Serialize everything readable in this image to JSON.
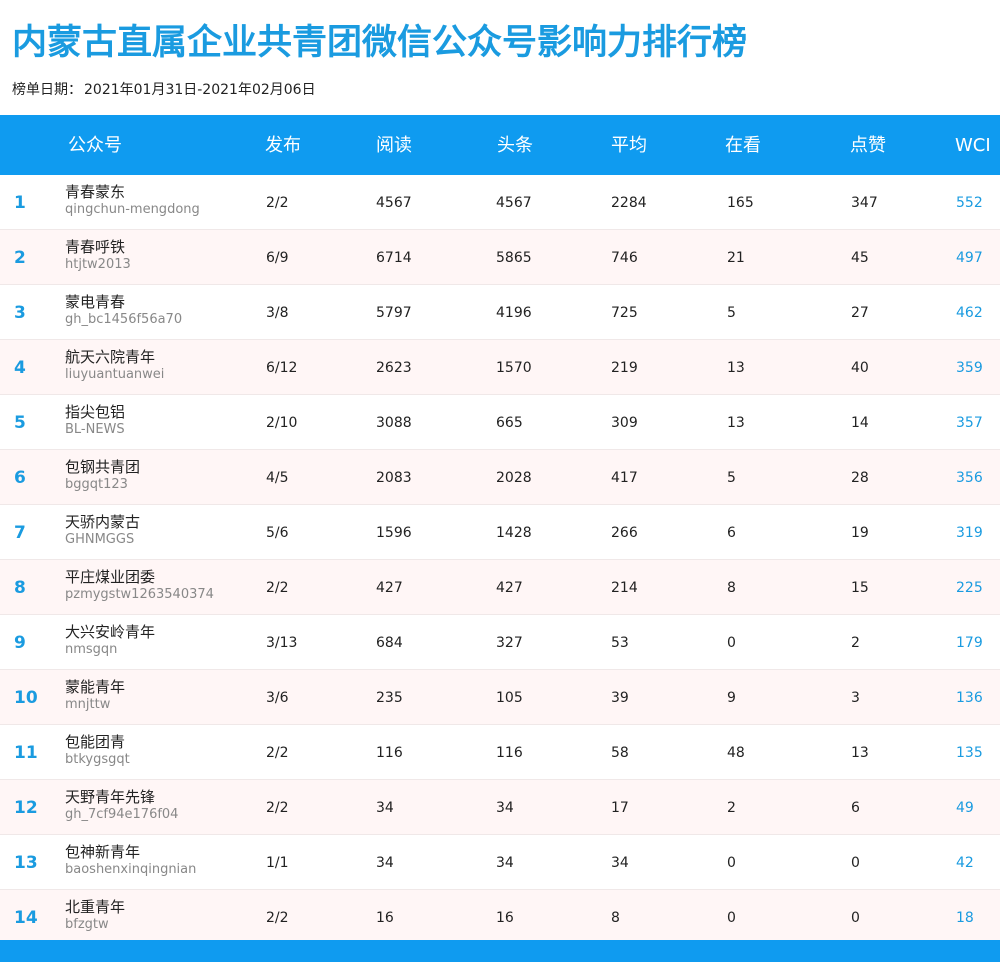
{
  "title": "内蒙古直属企业共青团微信公众号影响力排行榜",
  "date_label": "榜单日期：",
  "date_range": "2021年01月31日-2021年02月06日",
  "columns": [
    "公众号",
    "发布",
    "阅读",
    "头条",
    "平均",
    "在看",
    "点赞",
    "WCI"
  ],
  "rows": [
    {
      "rank": "1",
      "name": "青春蒙东",
      "id": "qingchun-mengdong",
      "publish": "2/2",
      "read": "4567",
      "headline": "4567",
      "avg": "2284",
      "watching": "165",
      "likes": "347",
      "wci": "552"
    },
    {
      "rank": "2",
      "name": "青春呼铁",
      "id": "htjtw2013",
      "publish": "6/9",
      "read": "6714",
      "headline": "5865",
      "avg": "746",
      "watching": "21",
      "likes": "45",
      "wci": "497"
    },
    {
      "rank": "3",
      "name": "蒙电青春",
      "id": "gh_bc1456f56a70",
      "publish": "3/8",
      "read": "5797",
      "headline": "4196",
      "avg": "725",
      "watching": "5",
      "likes": "27",
      "wci": "462"
    },
    {
      "rank": "4",
      "name": "航天六院青年",
      "id": "liuyuantuanwei",
      "publish": "6/12",
      "read": "2623",
      "headline": "1570",
      "avg": "219",
      "watching": "13",
      "likes": "40",
      "wci": "359"
    },
    {
      "rank": "5",
      "name": "指尖包铝",
      "id": "BL-NEWS",
      "publish": "2/10",
      "read": "3088",
      "headline": "665",
      "avg": "309",
      "watching": "13",
      "likes": "14",
      "wci": "357"
    },
    {
      "rank": "6",
      "name": "包钢共青团",
      "id": "bggqt123",
      "publish": "4/5",
      "read": "2083",
      "headline": "2028",
      "avg": "417",
      "watching": "5",
      "likes": "28",
      "wci": "356"
    },
    {
      "rank": "7",
      "name": "天骄内蒙古",
      "id": "GHNMGGS",
      "publish": "5/6",
      "read": "1596",
      "headline": "1428",
      "avg": "266",
      "watching": "6",
      "likes": "19",
      "wci": "319"
    },
    {
      "rank": "8",
      "name": "平庄煤业团委",
      "id": "pzmygstw1263540374",
      "publish": "2/2",
      "read": "427",
      "headline": "427",
      "avg": "214",
      "watching": "8",
      "likes": "15",
      "wci": "225"
    },
    {
      "rank": "9",
      "name": "大兴安岭青年",
      "id": "nmsgqn",
      "publish": "3/13",
      "read": "684",
      "headline": "327",
      "avg": "53",
      "watching": "0",
      "likes": "2",
      "wci": "179"
    },
    {
      "rank": "10",
      "name": "蒙能青年",
      "id": "mnjttw",
      "publish": "3/6",
      "read": "235",
      "headline": "105",
      "avg": "39",
      "watching": "9",
      "likes": "3",
      "wci": "136"
    },
    {
      "rank": "11",
      "name": "包能团青",
      "id": "btkygsgqt",
      "publish": "2/2",
      "read": "116",
      "headline": "116",
      "avg": "58",
      "watching": "48",
      "likes": "13",
      "wci": "135"
    },
    {
      "rank": "12",
      "name": "天野青年先锋",
      "id": "gh_7cf94e176f04",
      "publish": "2/2",
      "read": "34",
      "headline": "34",
      "avg": "17",
      "watching": "2",
      "likes": "6",
      "wci": "49"
    },
    {
      "rank": "13",
      "name": "包神新青年",
      "id": "baoshenxinqingnian",
      "publish": "1/1",
      "read": "34",
      "headline": "34",
      "avg": "34",
      "watching": "0",
      "likes": "0",
      "wci": "42"
    },
    {
      "rank": "14",
      "name": "北重青年",
      "id": "bfzgtw",
      "publish": "2/2",
      "read": "16",
      "headline": "16",
      "avg": "8",
      "watching": "0",
      "likes": "0",
      "wci": "18"
    }
  ],
  "colors": {
    "accent": "#1a9be0",
    "header_bg": "#0f9bf0",
    "alt_row": "#fff6f6"
  }
}
